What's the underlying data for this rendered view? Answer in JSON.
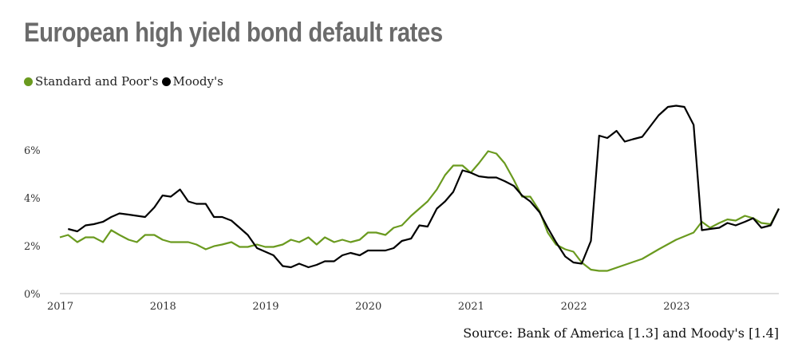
{
  "title": "European high yield bond default rates",
  "source": "Source: Bank of America [1.3] and Moody's [1.4]",
  "colors": {
    "sp": "#6a9a1f",
    "moodys": "#000000",
    "axis": "#bfbfbf"
  },
  "chart_data": {
    "type": "line",
    "title": "European high yield bond default rates",
    "xlabel": "",
    "ylabel": "",
    "xlim": [
      2017.0,
      2024.0
    ],
    "ylim": [
      0,
      8
    ],
    "y_ticks": [
      0,
      2,
      4,
      6
    ],
    "y_tick_labels": [
      "0%",
      "2%",
      "4%",
      "6%"
    ],
    "x_ticks": [
      2017,
      2018,
      2019,
      2020,
      2021,
      2022,
      2023
    ],
    "x_tick_labels": [
      "2017",
      "2018",
      "2019",
      "2020",
      "2021",
      "2022",
      "2023"
    ],
    "grid": false,
    "legend_position": "top-left",
    "series": [
      {
        "name": "Standard and Poor's",
        "color": "#6a9a1f",
        "x": [
          2017.0,
          2017.08,
          2017.17,
          2017.25,
          2017.33,
          2017.42,
          2017.5,
          2017.58,
          2017.67,
          2017.75,
          2017.83,
          2017.92,
          2018.0,
          2018.08,
          2018.17,
          2018.25,
          2018.33,
          2018.42,
          2018.5,
          2018.58,
          2018.67,
          2018.75,
          2018.83,
          2018.92,
          2019.0,
          2019.08,
          2019.17,
          2019.25,
          2019.33,
          2019.42,
          2019.5,
          2019.58,
          2019.67,
          2019.75,
          2019.83,
          2019.92,
          2020.0,
          2020.08,
          2020.17,
          2020.25,
          2020.33,
          2020.42,
          2020.5,
          2020.58,
          2020.67,
          2020.75,
          2020.83,
          2020.92,
          2021.0,
          2021.08,
          2021.17,
          2021.25,
          2021.33,
          2021.42,
          2021.5,
          2021.58,
          2021.67,
          2021.75,
          2021.83,
          2021.92,
          2022.0,
          2022.08,
          2022.17,
          2022.25,
          2022.33,
          2022.5,
          2022.67,
          2022.83,
          2023.0,
          2023.17,
          2023.25,
          2023.33,
          2023.42,
          2023.5,
          2023.58,
          2023.67,
          2023.75,
          2023.83,
          2023.92,
          2024.0
        ],
        "values": [
          2.35,
          2.45,
          2.15,
          2.35,
          2.35,
          2.15,
          2.65,
          2.45,
          2.25,
          2.15,
          2.45,
          2.45,
          2.25,
          2.15,
          2.15,
          2.15,
          2.05,
          1.85,
          1.98,
          2.05,
          2.15,
          1.95,
          1.95,
          2.05,
          1.95,
          1.95,
          2.05,
          2.25,
          2.15,
          2.35,
          2.05,
          2.35,
          2.15,
          2.25,
          2.15,
          2.25,
          2.55,
          2.55,
          2.45,
          2.75,
          2.85,
          3.25,
          3.55,
          3.85,
          4.35,
          4.95,
          5.35,
          5.35,
          5.05,
          5.45,
          5.95,
          5.85,
          5.45,
          4.75,
          4.05,
          4.05,
          3.45,
          2.55,
          2.05,
          1.85,
          1.75,
          1.3,
          1.0,
          0.95,
          0.95,
          1.2,
          1.45,
          1.85,
          2.25,
          2.55,
          3.0,
          2.75,
          2.95,
          3.1,
          3.05,
          3.25,
          3.15,
          2.95,
          2.9,
          3.55
        ]
      },
      {
        "name": "Moody's",
        "color": "#000000",
        "x": [
          2017.08,
          2017.17,
          2017.25,
          2017.33,
          2017.42,
          2017.5,
          2017.58,
          2017.67,
          2017.75,
          2017.83,
          2017.92,
          2018.0,
          2018.08,
          2018.17,
          2018.25,
          2018.33,
          2018.42,
          2018.5,
          2018.58,
          2018.67,
          2018.75,
          2018.83,
          2018.92,
          2019.0,
          2019.08,
          2019.17,
          2019.25,
          2019.33,
          2019.42,
          2019.5,
          2019.58,
          2019.67,
          2019.75,
          2019.83,
          2019.92,
          2020.0,
          2020.08,
          2020.17,
          2020.25,
          2020.33,
          2020.42,
          2020.5,
          2020.58,
          2020.67,
          2020.75,
          2020.83,
          2020.92,
          2021.0,
          2021.08,
          2021.17,
          2021.25,
          2021.33,
          2021.42,
          2021.5,
          2021.58,
          2021.67,
          2021.75,
          2021.83,
          2021.92,
          2022.0,
          2022.08,
          2022.17,
          2022.25,
          2022.33,
          2022.42,
          2022.5,
          2022.58,
          2022.67,
          2022.75,
          2022.83,
          2022.92,
          2023.0,
          2023.08,
          2023.17,
          2023.25,
          2023.33,
          2023.42,
          2023.5,
          2023.58,
          2023.67,
          2023.75,
          2023.83,
          2023.92,
          2024.0
        ],
        "values": [
          2.7,
          2.6,
          2.85,
          2.9,
          3.0,
          3.2,
          3.35,
          3.3,
          3.25,
          3.2,
          3.6,
          4.1,
          4.05,
          4.35,
          3.85,
          3.75,
          3.75,
          3.2,
          3.2,
          3.05,
          2.75,
          2.45,
          1.9,
          1.75,
          1.6,
          1.15,
          1.1,
          1.25,
          1.1,
          1.2,
          1.35,
          1.35,
          1.6,
          1.7,
          1.6,
          1.8,
          1.8,
          1.8,
          1.9,
          2.2,
          2.3,
          2.85,
          2.8,
          3.55,
          3.85,
          4.25,
          5.15,
          5.05,
          4.9,
          4.85,
          4.85,
          4.7,
          4.5,
          4.1,
          3.85,
          3.4,
          2.75,
          2.15,
          1.55,
          1.3,
          1.25,
          2.2,
          6.6,
          6.5,
          6.8,
          6.35,
          6.45,
          6.55,
          7.0,
          7.45,
          7.8,
          7.85,
          7.8,
          7.05,
          2.65,
          2.7,
          2.75,
          2.95,
          2.85,
          3.0,
          3.15,
          2.75,
          2.85,
          3.55
        ]
      }
    ]
  }
}
